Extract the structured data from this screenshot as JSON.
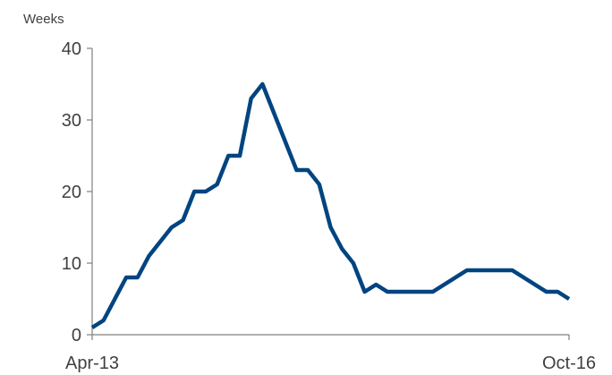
{
  "chart_data": {
    "type": "line",
    "title": "",
    "xlabel": "",
    "ylabel": "Weeks",
    "ylim": [
      0,
      40
    ],
    "yticks": [
      0,
      10,
      20,
      30,
      40
    ],
    "xtick_labels": [
      "Apr-13",
      "Oct-16"
    ],
    "grid": false,
    "legend": "none",
    "series": [
      {
        "color": "#004480",
        "x": [
          "2013-04",
          "2013-05",
          "2013-06",
          "2013-07",
          "2013-08",
          "2013-09",
          "2013-10",
          "2013-11",
          "2013-12",
          "2014-01",
          "2014-02",
          "2014-03",
          "2014-04",
          "2014-05",
          "2014-06",
          "2014-07",
          "2014-08",
          "2014-09",
          "2014-10",
          "2014-11",
          "2014-12",
          "2015-01",
          "2015-02",
          "2015-03",
          "2015-04",
          "2015-05",
          "2015-06",
          "2015-07",
          "2015-08",
          "2015-09",
          "2015-10",
          "2015-11",
          "2015-12",
          "2016-01",
          "2016-02",
          "2016-03",
          "2016-04",
          "2016-05",
          "2016-06",
          "2016-07",
          "2016-08",
          "2016-09",
          "2016-10"
        ],
        "values": [
          1,
          2,
          5,
          8,
          8,
          11,
          13,
          15,
          16,
          20,
          20,
          21,
          25,
          25,
          33,
          35,
          31,
          27,
          23,
          23,
          21,
          15,
          12,
          10,
          6,
          7,
          6,
          6,
          6,
          6,
          6,
          7,
          8,
          9,
          9,
          9,
          9,
          9,
          8,
          7,
          6,
          6,
          5
        ]
      }
    ]
  }
}
